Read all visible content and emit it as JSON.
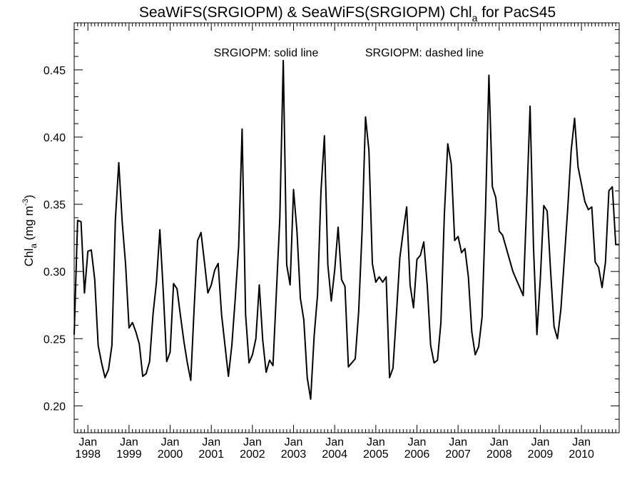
{
  "chart_data": {
    "type": "line",
    "title": {
      "main": "SeaWiFS(SRGIOPM) & SeaWiFS(SRGIOPM)  Chl",
      "sub": "a",
      "suffix": " for PacS45"
    },
    "annotation": {
      "solid": "SRGIOPM: solid line",
      "dashed": "SRGIOPM: dashed line"
    },
    "ylabel": {
      "main": "Chl",
      "sub": "a",
      "unit_prefix": " (mg m",
      "unit_sup": "-3",
      "unit_suffix": ")"
    },
    "ylim": [
      0.18,
      0.485
    ],
    "yticks": [
      "0.20",
      "0.25",
      "0.30",
      "0.35",
      "0.40",
      "0.45"
    ],
    "x_month_label": "Jan",
    "x_years": [
      "1998",
      "1999",
      "2000",
      "2001",
      "2002",
      "2003",
      "2004",
      "2005",
      "2006",
      "2007",
      "2008",
      "2009",
      "2010"
    ],
    "x_range": [
      "1997-09",
      "2010-12"
    ],
    "grid": false,
    "series": [
      {
        "line_style": "solid",
        "color": "#000000",
        "x": [
          "1997-09",
          "1997-10",
          "1997-11",
          "1997-12",
          "1998-01",
          "1998-02",
          "1998-03",
          "1998-04",
          "1998-05",
          "1998-06",
          "1998-07",
          "1998-08",
          "1998-09",
          "1998-10",
          "1998-11",
          "1998-12",
          "1999-01",
          "1999-02",
          "1999-03",
          "1999-04",
          "1999-05",
          "1999-06",
          "1999-07",
          "1999-08",
          "1999-09",
          "1999-10",
          "1999-11",
          "1999-12",
          "2000-01",
          "2000-02",
          "2000-03",
          "2000-04",
          "2000-05",
          "2000-06",
          "2000-07",
          "2000-08",
          "2000-09",
          "2000-10",
          "2000-11",
          "2000-12",
          "2001-01",
          "2001-02",
          "2001-03",
          "2001-04",
          "2001-05",
          "2001-06",
          "2001-07",
          "2001-08",
          "2001-09",
          "2001-10",
          "2001-11",
          "2001-12",
          "2002-01",
          "2002-02",
          "2002-03",
          "2002-04",
          "2002-05",
          "2002-06",
          "2002-07",
          "2002-08",
          "2002-09",
          "2002-10",
          "2002-11",
          "2002-12",
          "2003-01",
          "2003-02",
          "2003-03",
          "2003-04",
          "2003-05",
          "2003-06",
          "2003-07",
          "2003-08",
          "2003-09",
          "2003-10",
          "2003-11",
          "2003-12",
          "2004-01",
          "2004-02",
          "2004-03",
          "2004-04",
          "2004-05",
          "2004-06",
          "2004-07",
          "2004-08",
          "2004-09",
          "2004-10",
          "2004-11",
          "2004-12",
          "2005-01",
          "2005-02",
          "2005-03",
          "2005-04",
          "2005-05",
          "2005-06",
          "2005-07",
          "2005-08",
          "2005-09",
          "2005-10",
          "2005-11",
          "2005-12",
          "2006-01",
          "2006-02",
          "2006-03",
          "2006-04",
          "2006-05",
          "2006-06",
          "2006-07",
          "2006-08",
          "2006-09",
          "2006-10",
          "2006-11",
          "2006-12",
          "2007-01",
          "2007-02",
          "2007-03",
          "2007-04",
          "2007-05",
          "2007-06",
          "2007-07",
          "2007-08",
          "2007-09",
          "2007-10",
          "2007-11",
          "2007-12",
          "2008-01",
          "2008-02",
          "2008-05",
          "2008-06",
          "2008-07",
          "2008-08",
          "2008-09",
          "2008-10",
          "2008-11",
          "2008-12",
          "2009-01",
          "2009-02",
          "2009-03",
          "2009-04",
          "2009-05",
          "2009-06",
          "2009-07",
          "2009-08",
          "2009-09",
          "2009-10",
          "2009-11",
          "2009-12",
          "2010-01",
          "2010-02",
          "2010-03",
          "2010-04",
          "2010-05",
          "2010-06",
          "2010-07",
          "2010-08",
          "2010-09",
          "2010-10",
          "2010-11",
          "2010-12"
        ],
        "values": [
          0.253,
          0.338,
          0.337,
          0.284,
          0.315,
          0.316,
          0.294,
          0.245,
          0.232,
          0.221,
          0.227,
          0.245,
          0.338,
          0.381,
          0.337,
          0.305,
          0.258,
          0.262,
          0.255,
          0.246,
          0.222,
          0.224,
          0.233,
          0.268,
          0.292,
          0.331,
          0.285,
          0.233,
          0.24,
          0.291,
          0.287,
          0.267,
          0.248,
          0.232,
          0.219,
          0.273,
          0.323,
          0.329,
          0.307,
          0.284,
          0.29,
          0.301,
          0.306,
          0.268,
          0.245,
          0.222,
          0.245,
          0.28,
          0.319,
          0.406,
          0.268,
          0.232,
          0.238,
          0.25,
          0.29,
          0.249,
          0.225,
          0.234,
          0.23,
          0.285,
          0.34,
          0.457,
          0.305,
          0.29,
          0.361,
          0.33,
          0.28,
          0.264,
          0.221,
          0.205,
          0.252,
          0.283,
          0.36,
          0.401,
          0.305,
          0.278,
          0.301,
          0.333,
          0.294,
          0.289,
          0.229,
          0.232,
          0.235,
          0.27,
          0.33,
          0.415,
          0.39,
          0.306,
          0.292,
          0.296,
          0.292,
          0.296,
          0.221,
          0.228,
          0.268,
          0.31,
          0.33,
          0.348,
          0.29,
          0.273,
          0.309,
          0.312,
          0.322,
          0.29,
          0.245,
          0.232,
          0.234,
          0.262,
          0.342,
          0.395,
          0.38,
          0.323,
          0.326,
          0.314,
          0.317,
          0.296,
          0.255,
          0.238,
          0.244,
          0.266,
          0.345,
          0.446,
          0.363,
          0.355,
          0.33,
          0.327,
          0.3,
          0.294,
          0.288,
          0.282,
          0.35,
          0.423,
          0.318,
          0.253,
          0.295,
          0.349,
          0.345,
          0.3,
          0.259,
          0.25,
          0.272,
          0.309,
          0.347,
          0.39,
          0.414,
          0.378,
          0.365,
          0.352,
          0.346,
          0.348,
          0.307,
          0.303,
          0.288,
          0.307,
          0.36,
          0.363,
          0.32,
          0.32
        ]
      }
    ]
  }
}
